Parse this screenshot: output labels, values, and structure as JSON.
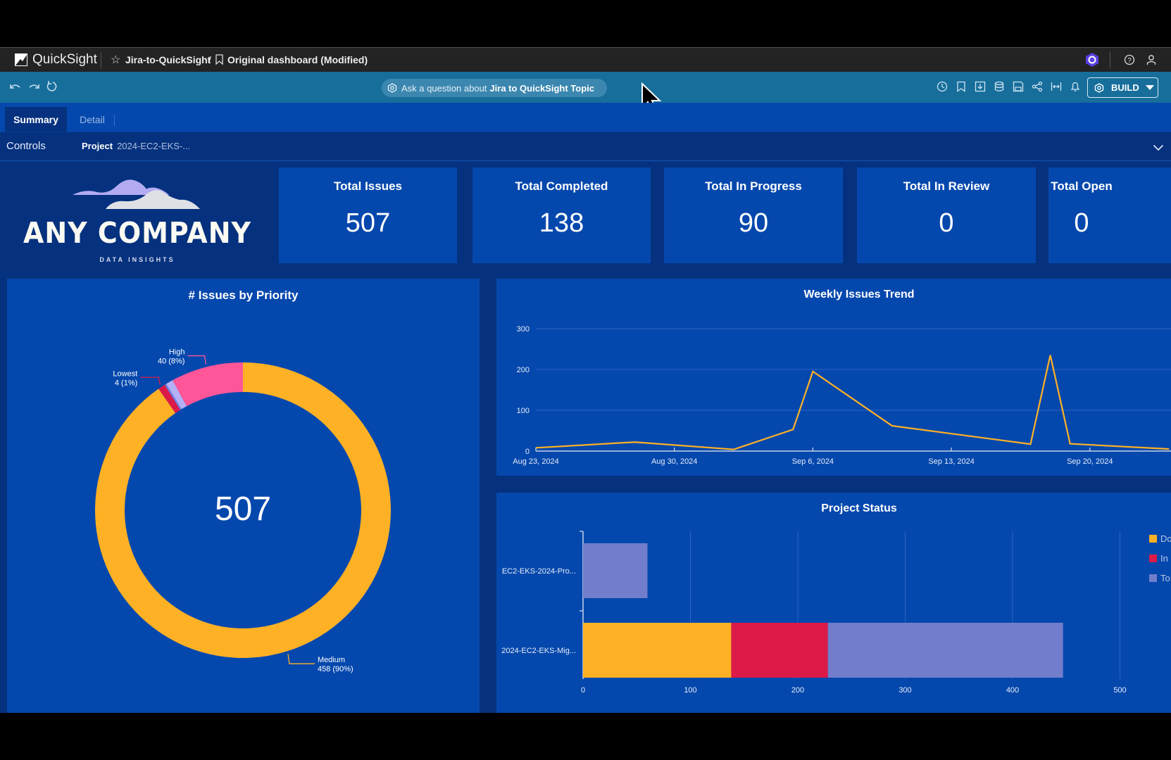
{
  "app": {
    "name": "QuickSight",
    "breadcrumb_analysis": "Jira-to-QuickSight",
    "breadcrumb_separator": "/",
    "breadcrumb_dashboard": "Original dashboard (Modified)"
  },
  "header_icons": [
    "q-logo-icon",
    "help-icon",
    "user-icon"
  ],
  "toolbar": {
    "left_icons": [
      "undo-icon",
      "redo-icon",
      "reset-icon"
    ],
    "ask_prefix": "Ask a question about ",
    "ask_topic": "Jira to QuickSight Topic",
    "right_icons": [
      "history-icon",
      "bookmark-icon",
      "export-icon",
      "dataset-icon",
      "save-icon",
      "share-icon",
      "fit-width-icon",
      "alert-icon"
    ],
    "build_label": "BUILD"
  },
  "tabs": [
    {
      "label": "Summary",
      "active": true
    },
    {
      "label": "Detail",
      "active": false
    }
  ],
  "controls": {
    "label": "Controls",
    "filter_name": "Project",
    "filter_value": "2024-EC2-EKS-..."
  },
  "logo": {
    "company": "ANY COMPANY",
    "tagline": "DATA INSIGHTS"
  },
  "kpis": [
    {
      "title": "Total Issues",
      "value": "507"
    },
    {
      "title": "Total Completed",
      "value": "138"
    },
    {
      "title": "Total In Progress",
      "value": "90"
    },
    {
      "title": "Total In Review",
      "value": "0"
    },
    {
      "title": "Total Open",
      "value": "0"
    }
  ],
  "colors": {
    "accent_yellow": "#ffb125",
    "pink": "#ff5599",
    "red": "#dc1a47",
    "lavender": "#b5b0f5",
    "slate": "#6f7ee0",
    "periwinkle": "#727dcb",
    "panel_bg": "#0548ad",
    "dashboard_bg": "#05317e"
  },
  "chart_data": [
    {
      "type": "pie",
      "title": "# Issues by Priority",
      "center_label": "507",
      "slices": [
        {
          "name": "Medium",
          "value": 458,
          "label_line1": "Medium",
          "label_line2": "458 (90%)",
          "color": "#ffb125"
        },
        {
          "name": "Lowest",
          "value": 4,
          "label_line1": "Lowest",
          "label_line2": "4 (1%)",
          "color": "#dc1a47"
        },
        {
          "name": "",
          "value": 1,
          "label_line1": "",
          "label_line2": "",
          "color": "#6f7ee0"
        },
        {
          "name": "",
          "value": 4,
          "label_line1": "",
          "label_line2": "",
          "color": "#b5b0f5"
        },
        {
          "name": "High",
          "value": 40,
          "label_line1": "High",
          "label_line2": "40 (8%)",
          "color": "#ff5599"
        }
      ]
    },
    {
      "type": "line",
      "title": "Weekly Issues Trend",
      "xlabel": "",
      "ylabel": "",
      "ylim": [
        0,
        300
      ],
      "yticks": [
        "0",
        "100",
        "200",
        "300"
      ],
      "xticks": [
        "Aug 23, 2024",
        "Aug 30, 2024",
        "Sep 6, 2024",
        "Sep 13, 2024",
        "Sep 20, 2024"
      ],
      "grid": true,
      "series": [
        {
          "name": "Issues",
          "color": "#ffb125",
          "points": [
            {
              "day": 0,
              "value": 8
            },
            {
              "day": 5,
              "value": 22
            },
            {
              "day": 10,
              "value": 4
            },
            {
              "day": 13,
              "value": 53
            },
            {
              "day": 14,
              "value": 195
            },
            {
              "day": 18,
              "value": 62
            },
            {
              "day": 25,
              "value": 17
            },
            {
              "day": 26,
              "value": 235
            },
            {
              "day": 27,
              "value": 18
            },
            {
              "day": 32,
              "value": 5
            }
          ]
        }
      ]
    },
    {
      "type": "bar",
      "orientation": "horizontal",
      "stacked": true,
      "title": "Project Status",
      "categories": [
        "EC2-EKS-2024-Pro...",
        "2024-EC2-EKS-Mig..."
      ],
      "xlim": [
        0,
        500
      ],
      "xticks": [
        "0",
        "100",
        "200",
        "300",
        "400",
        "500"
      ],
      "legend_position": "right",
      "series": [
        {
          "name": "Do",
          "color": "#ffb125",
          "values": [
            0,
            138
          ]
        },
        {
          "name": "In",
          "color": "#dc1a47",
          "values": [
            0,
            90
          ]
        },
        {
          "name": "To",
          "color": "#727dcb",
          "values": [
            60,
            219
          ]
        }
      ]
    }
  ]
}
